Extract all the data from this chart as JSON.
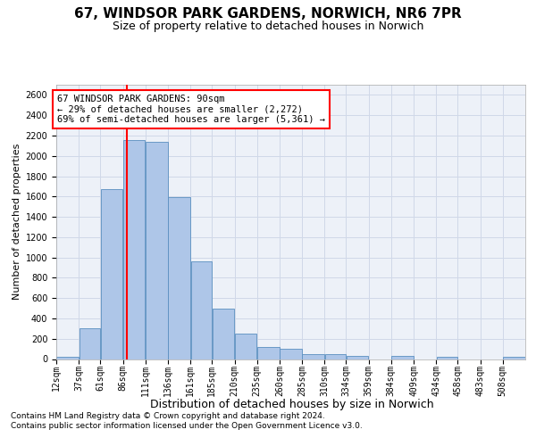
{
  "title": "67, WINDSOR PARK GARDENS, NORWICH, NR6 7PR",
  "subtitle": "Size of property relative to detached houses in Norwich",
  "xlabel": "Distribution of detached houses by size in Norwich",
  "ylabel": "Number of detached properties",
  "footnote1": "Contains HM Land Registry data © Crown copyright and database right 2024.",
  "footnote2": "Contains public sector information licensed under the Open Government Licence v3.0.",
  "annotation_line0": "67 WINDSOR PARK GARDENS: 90sqm",
  "annotation_line1": "← 29% of detached houses are smaller (2,272)",
  "annotation_line2": "69% of semi-detached houses are larger (5,361) →",
  "property_sqm": 90,
  "bin_edges": [
    12,
    37,
    61,
    86,
    111,
    136,
    161,
    185,
    210,
    235,
    260,
    285,
    310,
    334,
    359,
    384,
    409,
    434,
    458,
    483,
    508
  ],
  "bin_labels": [
    "12sqm",
    "37sqm",
    "61sqm",
    "86sqm",
    "111sqm",
    "136sqm",
    "161sqm",
    "185sqm",
    "210sqm",
    "235sqm",
    "260sqm",
    "285sqm",
    "310sqm",
    "334sqm",
    "359sqm",
    "384sqm",
    "409sqm",
    "434sqm",
    "458sqm",
    "483sqm",
    "508sqm"
  ],
  "bar_heights": [
    25,
    300,
    1670,
    2160,
    2140,
    1595,
    960,
    500,
    250,
    120,
    100,
    50,
    50,
    35,
    0,
    30,
    0,
    25,
    0,
    0,
    25
  ],
  "bar_color": "#aec6e8",
  "bar_edge_color": "#5a8fc0",
  "vline_color": "red",
  "ylim_max": 2700,
  "yticks": [
    0,
    200,
    400,
    600,
    800,
    1000,
    1200,
    1400,
    1600,
    1800,
    2000,
    2200,
    2400,
    2600
  ],
  "grid_color": "#d0d8e8",
  "bg_color": "#edf1f8",
  "title_fontsize": 11,
  "subtitle_fontsize": 9,
  "xlabel_fontsize": 9,
  "ylabel_fontsize": 8,
  "tick_fontsize": 7,
  "annotation_fontsize": 7.5,
  "footnote_fontsize": 6.5
}
